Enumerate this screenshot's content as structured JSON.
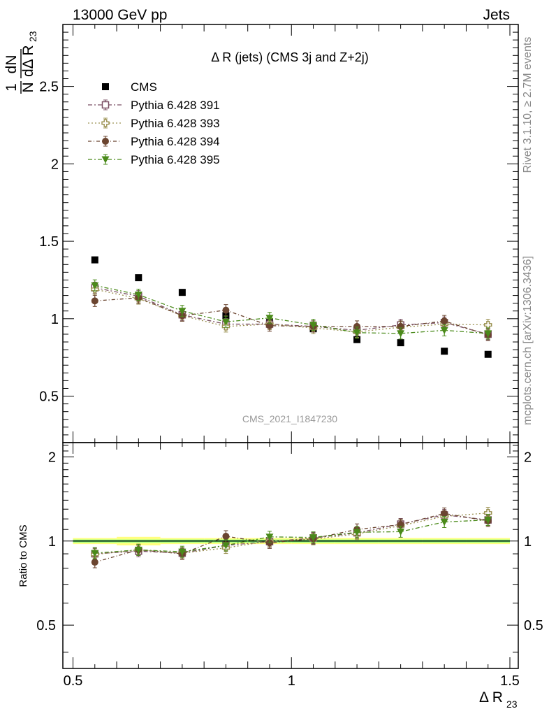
{
  "header": {
    "left": "13000 GeV pp",
    "right": "Jets"
  },
  "side": {
    "rivet": "Rivet 3.1.10, ≥ 2.7M events",
    "mcplots": "mcplots.cern.ch [arXiv:1306.3436]"
  },
  "chart_data": [
    {
      "type": "scatter",
      "title": "Δ R (jets) (CMS 3j and Z+2j)",
      "ylabel": "1/N dN/dΔ R23",
      "ylabel_parts": {
        "one": "1",
        "dn": "dN",
        "n": "N",
        "d": "dΔ R",
        "sub": "23"
      },
      "watermark": "CMS_2021_I1847230",
      "xlim": [
        0.5,
        1.5
      ],
      "ylim": [
        0.2,
        2.9
      ],
      "yticks": [
        0.5,
        1,
        1.5,
        2,
        2.5
      ],
      "ytick_labels": [
        "0.5",
        "1",
        "1.5",
        "2",
        "2.5"
      ],
      "legend_position": "top-left",
      "x": [
        0.55,
        0.65,
        0.75,
        0.85,
        0.95,
        1.05,
        1.15,
        1.25,
        1.35,
        1.45
      ],
      "series": [
        {
          "name": "CMS",
          "marker": "square-filled",
          "color": "#000000",
          "values": [
            1.38,
            1.265,
            1.17,
            1.02,
            0.975,
            0.935,
            0.865,
            0.845,
            0.79,
            0.77
          ]
        },
        {
          "name": "Pythia 6.428 391",
          "marker": "square-open",
          "color": "#7a4f63",
          "dash": "6,3,2,3",
          "values": [
            1.2,
            1.145,
            1.025,
            0.965,
            0.965,
            0.95,
            0.925,
            0.96,
            0.975,
            0.9
          ]
        },
        {
          "name": "Pythia 6.428 393",
          "marker": "cross-open",
          "color": "#9a9050",
          "dash": "2,3",
          "values": [
            1.19,
            1.13,
            1.02,
            0.95,
            0.965,
            0.94,
            0.915,
            0.945,
            0.965,
            0.96
          ]
        },
        {
          "name": "Pythia 6.428 394",
          "marker": "circle-filled",
          "color": "#6b4530",
          "dash": "5,3,1,3",
          "values": [
            1.115,
            1.135,
            1.02,
            1.055,
            0.955,
            0.95,
            0.95,
            0.95,
            0.985,
            0.895
          ]
        },
        {
          "name": "Pythia 6.428 395",
          "marker": "triangle-down-filled",
          "color": "#4a8a1a",
          "dash": "6,3,2,3",
          "values": [
            1.215,
            1.155,
            1.05,
            0.98,
            1.005,
            0.96,
            0.91,
            0.905,
            0.925,
            0.905
          ]
        }
      ]
    },
    {
      "type": "scatter",
      "ylabel": "Ratio to CMS",
      "xlabel": "Δ R23",
      "xlabel_parts": {
        "main": "Δ R",
        "sub": "23"
      },
      "xlim": [
        0.5,
        1.5
      ],
      "ylim": [
        0.35,
        2.25
      ],
      "xticks": [
        0.5,
        1,
        1.5
      ],
      "xtick_labels": [
        "0.5",
        "1",
        "1.5"
      ],
      "yticks": [
        0.5,
        1,
        2
      ],
      "ytick_labels": [
        "0.5",
        "1",
        "2"
      ],
      "x": [
        0.55,
        0.65,
        0.75,
        0.85,
        0.95,
        1.05,
        1.15,
        1.25,
        1.35,
        1.45
      ],
      "band_colors": [
        "#ffff80",
        "#80ff80"
      ],
      "series": [
        {
          "name": "Pythia 6.428 391",
          "values": [
            0.9,
            0.92,
            0.905,
            0.965,
            0.995,
            1.025,
            1.07,
            1.15,
            1.24,
            1.19
          ]
        },
        {
          "name": "Pythia 6.428 393",
          "values": [
            0.895,
            0.93,
            0.905,
            0.945,
            1.0,
            1.015,
            1.06,
            1.135,
            1.225,
            1.26
          ]
        },
        {
          "name": "Pythia 6.428 394",
          "values": [
            0.84,
            0.93,
            0.9,
            1.04,
            0.985,
            1.02,
            1.1,
            1.145,
            1.255,
            1.18
          ]
        },
        {
          "name": "Pythia 6.428 395",
          "values": [
            0.905,
            0.93,
            0.915,
            0.965,
            1.035,
            1.03,
            1.075,
            1.08,
            1.17,
            1.19
          ]
        }
      ]
    }
  ]
}
